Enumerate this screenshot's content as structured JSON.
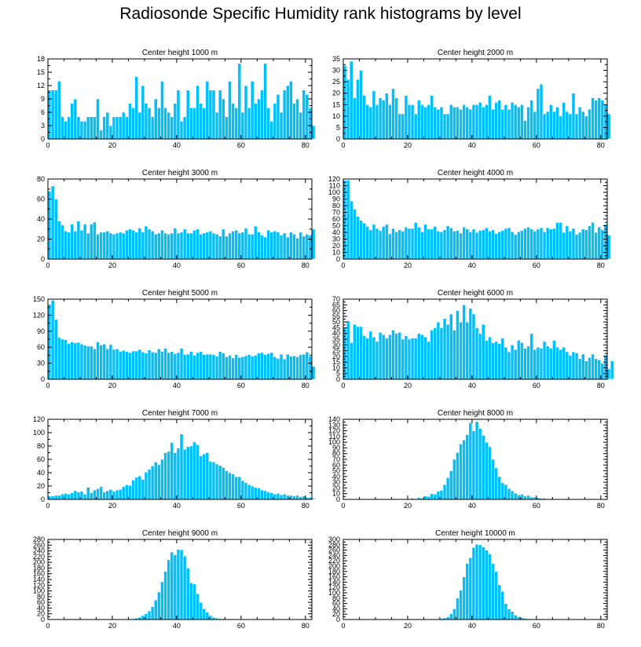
{
  "title": "Radiosonde Specific Humidity rank histograms by level",
  "colors": {
    "bar": "#00BFFF",
    "bar_edge": "#ffffff",
    "axis": "#000000",
    "background": "#ffffff"
  },
  "chart_data": [
    {
      "type": "bar",
      "title": "Center height 1000 m",
      "xlabel": "",
      "ylabel": "",
      "xlim": [
        0,
        82
      ],
      "xticks": [
        0,
        20,
        40,
        60,
        80
      ],
      "ylim": [
        0,
        18
      ],
      "yticks": [
        0,
        3,
        6,
        9,
        12,
        15,
        18
      ],
      "values": [
        11,
        11,
        11,
        13,
        5,
        4,
        5,
        8,
        9,
        5,
        4,
        4,
        5,
        5,
        5,
        9,
        2,
        5,
        6,
        3,
        5,
        5,
        5,
        6,
        5,
        8,
        7,
        14,
        6,
        12,
        8,
        7,
        5,
        9,
        7,
        13,
        7,
        6,
        5,
        8,
        11,
        4,
        5,
        11,
        7,
        7,
        12,
        8,
        7,
        13,
        11,
        11,
        6,
        11,
        9,
        5,
        13,
        8,
        7,
        17,
        6,
        12,
        7,
        13,
        8,
        9,
        11,
        17,
        7,
        4,
        8,
        10,
        6,
        11,
        12,
        13,
        8,
        9,
        6,
        11,
        10,
        7,
        3
      ]
    },
    {
      "type": "bar",
      "title": "Center height 2000 m",
      "xlabel": "",
      "ylabel": "",
      "xlim": [
        0,
        82
      ],
      "xticks": [
        0,
        20,
        40,
        60,
        80
      ],
      "ylim": [
        0,
        35
      ],
      "yticks": [
        0,
        5,
        10,
        15,
        20,
        25,
        30,
        35
      ],
      "values": [
        32,
        26,
        34,
        18,
        26,
        30,
        19,
        15,
        14,
        21,
        15,
        18,
        17,
        20,
        15,
        22,
        18,
        11,
        11,
        19,
        15,
        15,
        11,
        17,
        15,
        14,
        15,
        19,
        14,
        13,
        14,
        11,
        11,
        15,
        14,
        14,
        13,
        15,
        14,
        13,
        15,
        15,
        16,
        14,
        15,
        19,
        13,
        16,
        17,
        13,
        15,
        13,
        16,
        15,
        14,
        15,
        8,
        14,
        17,
        12,
        22,
        24,
        11,
        12,
        15,
        12,
        14,
        10,
        16,
        12,
        11,
        20,
        11,
        14,
        12,
        10,
        13,
        18,
        17,
        18,
        17,
        15,
        11
      ]
    },
    {
      "type": "bar",
      "title": "Center height 3000 m",
      "xlabel": "",
      "ylabel": "",
      "xlim": [
        0,
        82
      ],
      "xticks": [
        0,
        20,
        40,
        60,
        80
      ],
      "ylim": [
        0,
        80
      ],
      "yticks": [
        0,
        20,
        40,
        60,
        80
      ],
      "values": [
        68,
        73,
        60,
        38,
        34,
        28,
        27,
        35,
        28,
        38,
        29,
        35,
        26,
        35,
        37,
        25,
        27,
        27,
        28,
        26,
        25,
        26,
        27,
        26,
        29,
        30,
        29,
        27,
        31,
        27,
        33,
        30,
        28,
        25,
        26,
        29,
        26,
        25,
        26,
        31,
        26,
        27,
        30,
        26,
        26,
        29,
        30,
        25,
        26,
        27,
        28,
        26,
        25,
        23,
        30,
        23,
        26,
        28,
        29,
        26,
        27,
        31,
        25,
        25,
        33,
        27,
        24,
        22,
        29,
        27,
        28,
        27,
        24,
        26,
        22,
        27,
        25,
        21,
        27,
        23,
        25,
        24,
        30
      ]
    },
    {
      "type": "bar",
      "title": "Center height 4000 m",
      "xlabel": "",
      "ylabel": "",
      "xlim": [
        0,
        82
      ],
      "xticks": [
        0,
        20,
        40,
        60,
        80
      ],
      "ylim": [
        0,
        120
      ],
      "yticks": [
        0,
        10,
        20,
        30,
        40,
        50,
        60,
        70,
        80,
        90,
        100,
        110,
        120
      ],
      "values": [
        118,
        118,
        87,
        75,
        64,
        58,
        54,
        49,
        44,
        52,
        46,
        43,
        49,
        52,
        38,
        46,
        41,
        44,
        42,
        48,
        46,
        46,
        55,
        48,
        41,
        52,
        45,
        45,
        49,
        42,
        41,
        44,
        50,
        47,
        42,
        43,
        39,
        48,
        45,
        41,
        45,
        40,
        43,
        44,
        47,
        42,
        44,
        38,
        41,
        43,
        46,
        47,
        41,
        37,
        41,
        43,
        46,
        48,
        45,
        42,
        45,
        47,
        41,
        47,
        45,
        46,
        55,
        55,
        40,
        50,
        42,
        46,
        37,
        40,
        45,
        44,
        50,
        55,
        40,
        48,
        44,
        52,
        36
      ]
    },
    {
      "type": "bar",
      "title": "Center height 5000 m",
      "xlabel": "",
      "ylabel": "",
      "xlim": [
        0,
        82
      ],
      "xticks": [
        0,
        20,
        40,
        60,
        80
      ],
      "ylim": [
        0,
        150
      ],
      "yticks": [
        0,
        30,
        60,
        90,
        120,
        150
      ],
      "values": [
        140,
        148,
        112,
        78,
        75,
        74,
        67,
        70,
        68,
        69,
        66,
        64,
        62,
        62,
        57,
        70,
        64,
        66,
        57,
        65,
        56,
        57,
        52,
        54,
        52,
        50,
        53,
        53,
        56,
        51,
        49,
        55,
        51,
        50,
        57,
        52,
        58,
        50,
        52,
        48,
        50,
        58,
        46,
        47,
        52,
        45,
        50,
        52,
        46,
        47,
        47,
        46,
        43,
        52,
        49,
        42,
        45,
        40,
        46,
        41,
        42,
        44,
        46,
        43,
        45,
        49,
        50,
        46,
        48,
        50,
        42,
        39,
        47,
        38,
        47,
        43,
        44,
        42,
        46,
        47,
        51,
        43,
        24
      ]
    },
    {
      "type": "bar",
      "title": "Center height 6000 m",
      "xlabel": "",
      "ylabel": "",
      "xlim": [
        0,
        82
      ],
      "xticks": [
        0,
        20,
        40,
        60,
        80
      ],
      "ylim": [
        0,
        70
      ],
      "yticks": [
        0,
        5,
        10,
        15,
        20,
        25,
        30,
        35,
        40,
        45,
        50,
        55,
        60,
        65,
        70
      ],
      "values": [
        45,
        51,
        32,
        48,
        46,
        46,
        38,
        36,
        42,
        37,
        33,
        41,
        39,
        36,
        39,
        43,
        40,
        41,
        35,
        38,
        35,
        36,
        36,
        40,
        39,
        37,
        33,
        43,
        45,
        50,
        45,
        53,
        48,
        57,
        43,
        60,
        50,
        65,
        50,
        62,
        57,
        45,
        40,
        48,
        34,
        37,
        32,
        33,
        31,
        36,
        28,
        24,
        30,
        26,
        34,
        32,
        27,
        29,
        40,
        26,
        28,
        27,
        33,
        29,
        27,
        34,
        28,
        26,
        28,
        24,
        21,
        24,
        23,
        18,
        22,
        16,
        19,
        22,
        18,
        17,
        14,
        21,
        9,
        16
      ]
    },
    {
      "type": "bar",
      "title": "Center height 7000 m",
      "xlabel": "",
      "ylabel": "",
      "xlim": [
        0,
        82
      ],
      "xticks": [
        0,
        20,
        40,
        60,
        80
      ],
      "ylim": [
        0,
        120
      ],
      "yticks": [
        0,
        20,
        40,
        60,
        80,
        100,
        120
      ],
      "values": [
        5,
        5,
        6,
        6,
        8,
        9,
        8,
        10,
        13,
        11,
        12,
        8,
        18,
        10,
        14,
        16,
        19,
        11,
        13,
        15,
        12,
        14,
        15,
        19,
        22,
        21,
        29,
        33,
        35,
        30,
        41,
        45,
        50,
        56,
        52,
        60,
        70,
        72,
        85,
        70,
        77,
        98,
        75,
        79,
        80,
        86,
        82,
        65,
        68,
        70,
        57,
        56,
        53,
        51,
        48,
        43,
        40,
        38,
        34,
        34,
        28,
        25,
        22,
        20,
        18,
        17,
        14,
        13,
        11,
        10,
        8,
        9,
        7,
        8,
        6,
        6,
        5,
        6,
        4,
        5,
        3,
        3,
        2
      ]
    },
    {
      "type": "bar",
      "title": "Center height 8000 m",
      "xlabel": "",
      "ylabel": "",
      "xlim": [
        0,
        82
      ],
      "xticks": [
        0,
        20,
        40,
        60,
        80
      ],
      "ylim": [
        0,
        140
      ],
      "yticks": [
        0,
        10,
        20,
        30,
        40,
        50,
        60,
        70,
        80,
        90,
        100,
        110,
        120,
        130,
        140
      ],
      "values": [
        0,
        0,
        0,
        0,
        0,
        0,
        0,
        0,
        0,
        0,
        0,
        0,
        0,
        0,
        0,
        0,
        0,
        0,
        0,
        0,
        1,
        2,
        1,
        3,
        2,
        6,
        5,
        10,
        9,
        14,
        16,
        26,
        38,
        50,
        70,
        82,
        97,
        104,
        113,
        134,
        120,
        136,
        124,
        112,
        100,
        92,
        70,
        55,
        40,
        29,
        26,
        19,
        15,
        11,
        8,
        9,
        6,
        7,
        4,
        4,
        3,
        2,
        2,
        1,
        1,
        0,
        0,
        0,
        0,
        0,
        0,
        0,
        0,
        0,
        0,
        0,
        0,
        0,
        0,
        0,
        0,
        0,
        0
      ]
    },
    {
      "type": "bar",
      "title": "Center height 9000 m",
      "xlabel": "",
      "ylabel": "",
      "xlim": [
        0,
        82
      ],
      "xticks": [
        0,
        20,
        40,
        60,
        80
      ],
      "ylim": [
        0,
        280
      ],
      "yticks": [
        0,
        20,
        40,
        60,
        80,
        100,
        120,
        140,
        160,
        180,
        200,
        220,
        240,
        260,
        280
      ],
      "values": [
        0,
        0,
        0,
        0,
        0,
        0,
        0,
        0,
        0,
        0,
        0,
        0,
        0,
        0,
        0,
        0,
        0,
        0,
        0,
        0,
        0,
        0,
        0,
        0,
        1,
        2,
        3,
        5,
        8,
        14,
        20,
        30,
        45,
        68,
        96,
        132,
        168,
        209,
        236,
        226,
        245,
        244,
        222,
        180,
        128,
        124,
        90,
        60,
        38,
        26,
        14,
        8,
        5,
        3,
        2,
        1,
        0,
        0,
        0,
        0,
        0,
        0,
        0,
        0,
        0,
        0,
        0,
        0,
        0,
        0,
        0,
        0,
        0,
        0,
        0,
        0,
        0,
        0,
        0,
        0,
        0,
        0,
        0
      ]
    },
    {
      "type": "bar",
      "title": "Center height 10000 m",
      "xlabel": "",
      "ylabel": "",
      "xlim": [
        0,
        82
      ],
      "xticks": [
        0,
        20,
        40,
        60,
        80
      ],
      "ylim": [
        0,
        300
      ],
      "yticks": [
        0,
        20,
        40,
        60,
        80,
        100,
        120,
        140,
        160,
        180,
        200,
        220,
        240,
        260,
        280,
        300
      ],
      "values": [
        0,
        0,
        0,
        0,
        0,
        0,
        0,
        0,
        0,
        0,
        0,
        0,
        0,
        0,
        0,
        0,
        0,
        0,
        0,
        0,
        0,
        0,
        0,
        0,
        0,
        0,
        0,
        0,
        0,
        2,
        4,
        6,
        10,
        22,
        40,
        80,
        110,
        160,
        210,
        232,
        270,
        282,
        280,
        272,
        260,
        245,
        210,
        180,
        130,
        105,
        60,
        40,
        30,
        17,
        10,
        7,
        4,
        3,
        2,
        1,
        0,
        0,
        0,
        0,
        0,
        0,
        0,
        0,
        0,
        0,
        0,
        0,
        0,
        0,
        0,
        0,
        0,
        0,
        0,
        0,
        0,
        0,
        0
      ]
    }
  ]
}
